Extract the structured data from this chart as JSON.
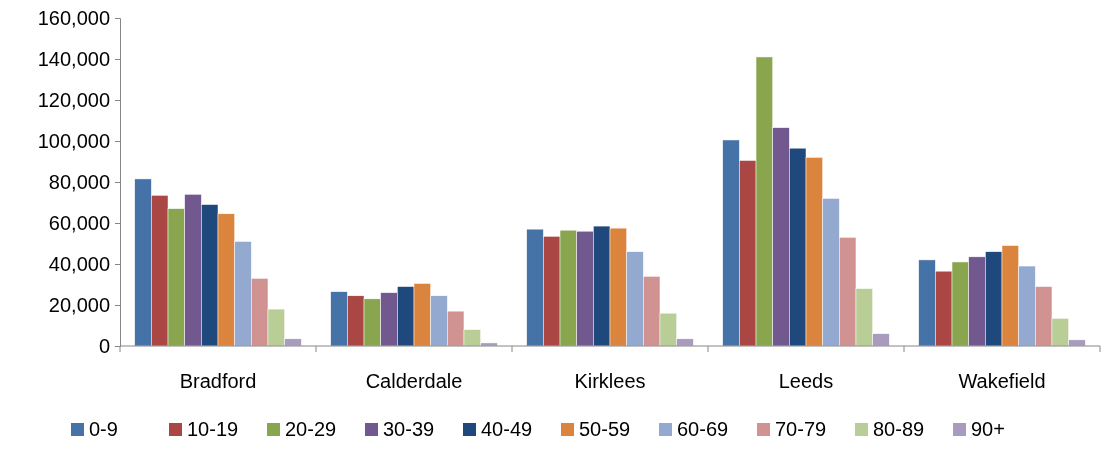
{
  "chart_data": {
    "type": "bar",
    "categories": [
      "Bradford",
      "Calderdale",
      "Kirklees",
      "Leeds",
      "Wakefield"
    ],
    "series": [
      {
        "name": "0-9",
        "color": "#4572a7",
        "values": [
          81500,
          26500,
          57000,
          100500,
          42000
        ]
      },
      {
        "name": "10-19",
        "color": "#aa4643",
        "values": [
          73500,
          24500,
          53500,
          90500,
          36500
        ]
      },
      {
        "name": "20-29",
        "color": "#89a54e",
        "values": [
          67000,
          23000,
          56500,
          141000,
          41000
        ]
      },
      {
        "name": "30-39",
        "color": "#71588f",
        "values": [
          74000,
          26000,
          56000,
          106500,
          43500
        ]
      },
      {
        "name": "40-49",
        "color": "#1f497d",
        "values": [
          69000,
          29000,
          58500,
          96500,
          46000
        ]
      },
      {
        "name": "50-59",
        "color": "#db843d",
        "values": [
          64500,
          30500,
          57500,
          92000,
          49000
        ]
      },
      {
        "name": "60-69",
        "color": "#93a9cf",
        "values": [
          51000,
          24500,
          46000,
          72000,
          39000
        ]
      },
      {
        "name": "70-79",
        "color": "#d19392",
        "values": [
          33000,
          17000,
          34000,
          53000,
          29000
        ]
      },
      {
        "name": "80-89",
        "color": "#b9cd96",
        "values": [
          18000,
          8000,
          16000,
          28000,
          13500
        ]
      },
      {
        "name": "90+",
        "color": "#a99bbd",
        "values": [
          3500,
          1500,
          3500,
          6000,
          3000
        ]
      }
    ],
    "ylim": [
      0,
      160000
    ],
    "yticks": [
      {
        "value": 0,
        "label": "0"
      },
      {
        "value": 20000,
        "label": "20,000"
      },
      {
        "value": 40000,
        "label": "40,000"
      },
      {
        "value": 60000,
        "label": "60,000"
      },
      {
        "value": 80000,
        "label": "80,000"
      },
      {
        "value": 100000,
        "label": "100,000"
      },
      {
        "value": 120000,
        "label": "120,000"
      },
      {
        "value": 140000,
        "label": "140,000"
      },
      {
        "value": 160000,
        "label": "160,000"
      }
    ],
    "grid": false,
    "legend": "bottom"
  }
}
